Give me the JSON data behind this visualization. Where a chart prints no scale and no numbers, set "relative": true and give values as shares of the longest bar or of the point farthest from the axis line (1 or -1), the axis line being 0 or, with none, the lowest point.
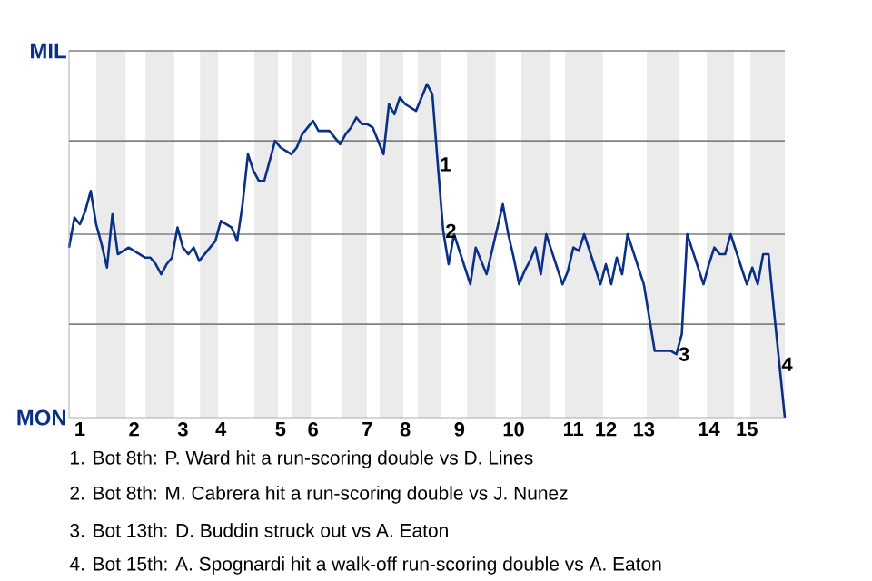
{
  "chart_data": {
    "type": "line",
    "relative": true,
    "categories": [
      null,
      null,
      "1",
      null,
      null,
      null,
      null,
      null,
      null,
      null,
      null,
      null,
      "2",
      null,
      null,
      null,
      null,
      null,
      null,
      null,
      null,
      "3",
      null,
      null,
      null,
      null,
      null,
      null,
      "4",
      null,
      null,
      null,
      null,
      null,
      null,
      null,
      null,
      null,
      null,
      "5",
      null,
      null,
      null,
      null,
      null,
      "6",
      null,
      null,
      null,
      null,
      null,
      null,
      null,
      null,
      null,
      "7",
      null,
      null,
      null,
      null,
      null,
      null,
      "8",
      null,
      null,
      null,
      null,
      null,
      null,
      null,
      null,
      null,
      "9",
      null,
      null,
      null,
      null,
      null,
      null,
      null,
      null,
      null,
      "10",
      null,
      null,
      null,
      null,
      null,
      null,
      null,
      null,
      null,
      null,
      "11",
      null,
      null,
      null,
      null,
      null,
      "12",
      null,
      null,
      null,
      null,
      null,
      null,
      "13",
      null,
      null,
      null,
      null,
      null,
      null,
      null,
      null,
      null,
      null,
      null,
      "14",
      null,
      null,
      null,
      null,
      null,
      null,
      "15",
      null,
      null,
      null,
      null,
      null,
      null,
      null
    ],
    "series": [
      {
        "color": "#0a2f87",
        "values": [
          0.51,
          0.6,
          0.58,
          0.62,
          0.68,
          0.58,
          0.52,
          0.45,
          0.61,
          0.49,
          0.5,
          0.51,
          0.5,
          0.49,
          0.48,
          0.48,
          0.46,
          0.43,
          0.46,
          0.48,
          0.57,
          0.51,
          0.49,
          0.51,
          0.47,
          0.49,
          0.51,
          0.53,
          0.59,
          0.58,
          0.57,
          0.53,
          0.64,
          0.79,
          0.74,
          0.71,
          0.71,
          0.77,
          0.83,
          0.81,
          0.8,
          0.79,
          0.81,
          0.85,
          0.87,
          0.89,
          0.86,
          0.86,
          0.86,
          0.84,
          0.82,
          0.85,
          0.87,
          0.9,
          0.88,
          0.88,
          0.87,
          0.83,
          0.79,
          0.94,
          0.91,
          0.96,
          0.94,
          0.93,
          0.92,
          0.96,
          1,
          0.97,
          0.76,
          0.56,
          0.46,
          0.55,
          0.5,
          0.45,
          0.4,
          0.51,
          0.47,
          0.43,
          0.5,
          0.57,
          0.64,
          0.55,
          0.48,
          0.4,
          0.44,
          0.47,
          0.51,
          0.43,
          0.55,
          0.5,
          0.45,
          0.4,
          0.44,
          0.51,
          0.5,
          0.55,
          0.5,
          0.45,
          0.4,
          0.46,
          0.4,
          0.48,
          0.43,
          0.55,
          0.5,
          0.45,
          0.4,
          0.3,
          0.2,
          0.2,
          0.2,
          0.2,
          0.19,
          0.25,
          0.55,
          0.5,
          0.45,
          0.4,
          0.46,
          0.51,
          0.49,
          0.49,
          0.55,
          0.5,
          0.45,
          0.4,
          0.45,
          0.4,
          0.49,
          0.49,
          0.32,
          0.16,
          0
        ]
      }
    ],
    "ref_lines": [
      {
        "axis": "y",
        "value": 0.28,
        "color": "#808080"
      },
      {
        "axis": "y",
        "value": 0.55,
        "color": "#808080"
      },
      {
        "axis": "y",
        "value": 0.83,
        "color": "#808080"
      },
      {
        "axis": "y",
        "value": 1.1,
        "color": "#808080"
      }
    ],
    "annotations": [
      "MIL",
      "MON",
      {
        "text": "1",
        "y": 0.76
      },
      {
        "text": "2",
        "y": 0.56
      },
      {
        "text": "3",
        "y": 0.19
      },
      {
        "text": "4",
        "y": 0.16
      },
      "1. Bot 8th: P. Ward hit a run-scoring double vs D. Lines",
      "2. Bot 8th: M. Cabrera hit a run-scoring double vs J. Nunez",
      "3. Bot 13th: D. Buddin struck out vs A. Eaton",
      "4. Bot 15th: A. Spognardi hit a walk-off run-scoring double vs A. Eaton"
    ]
  }
}
